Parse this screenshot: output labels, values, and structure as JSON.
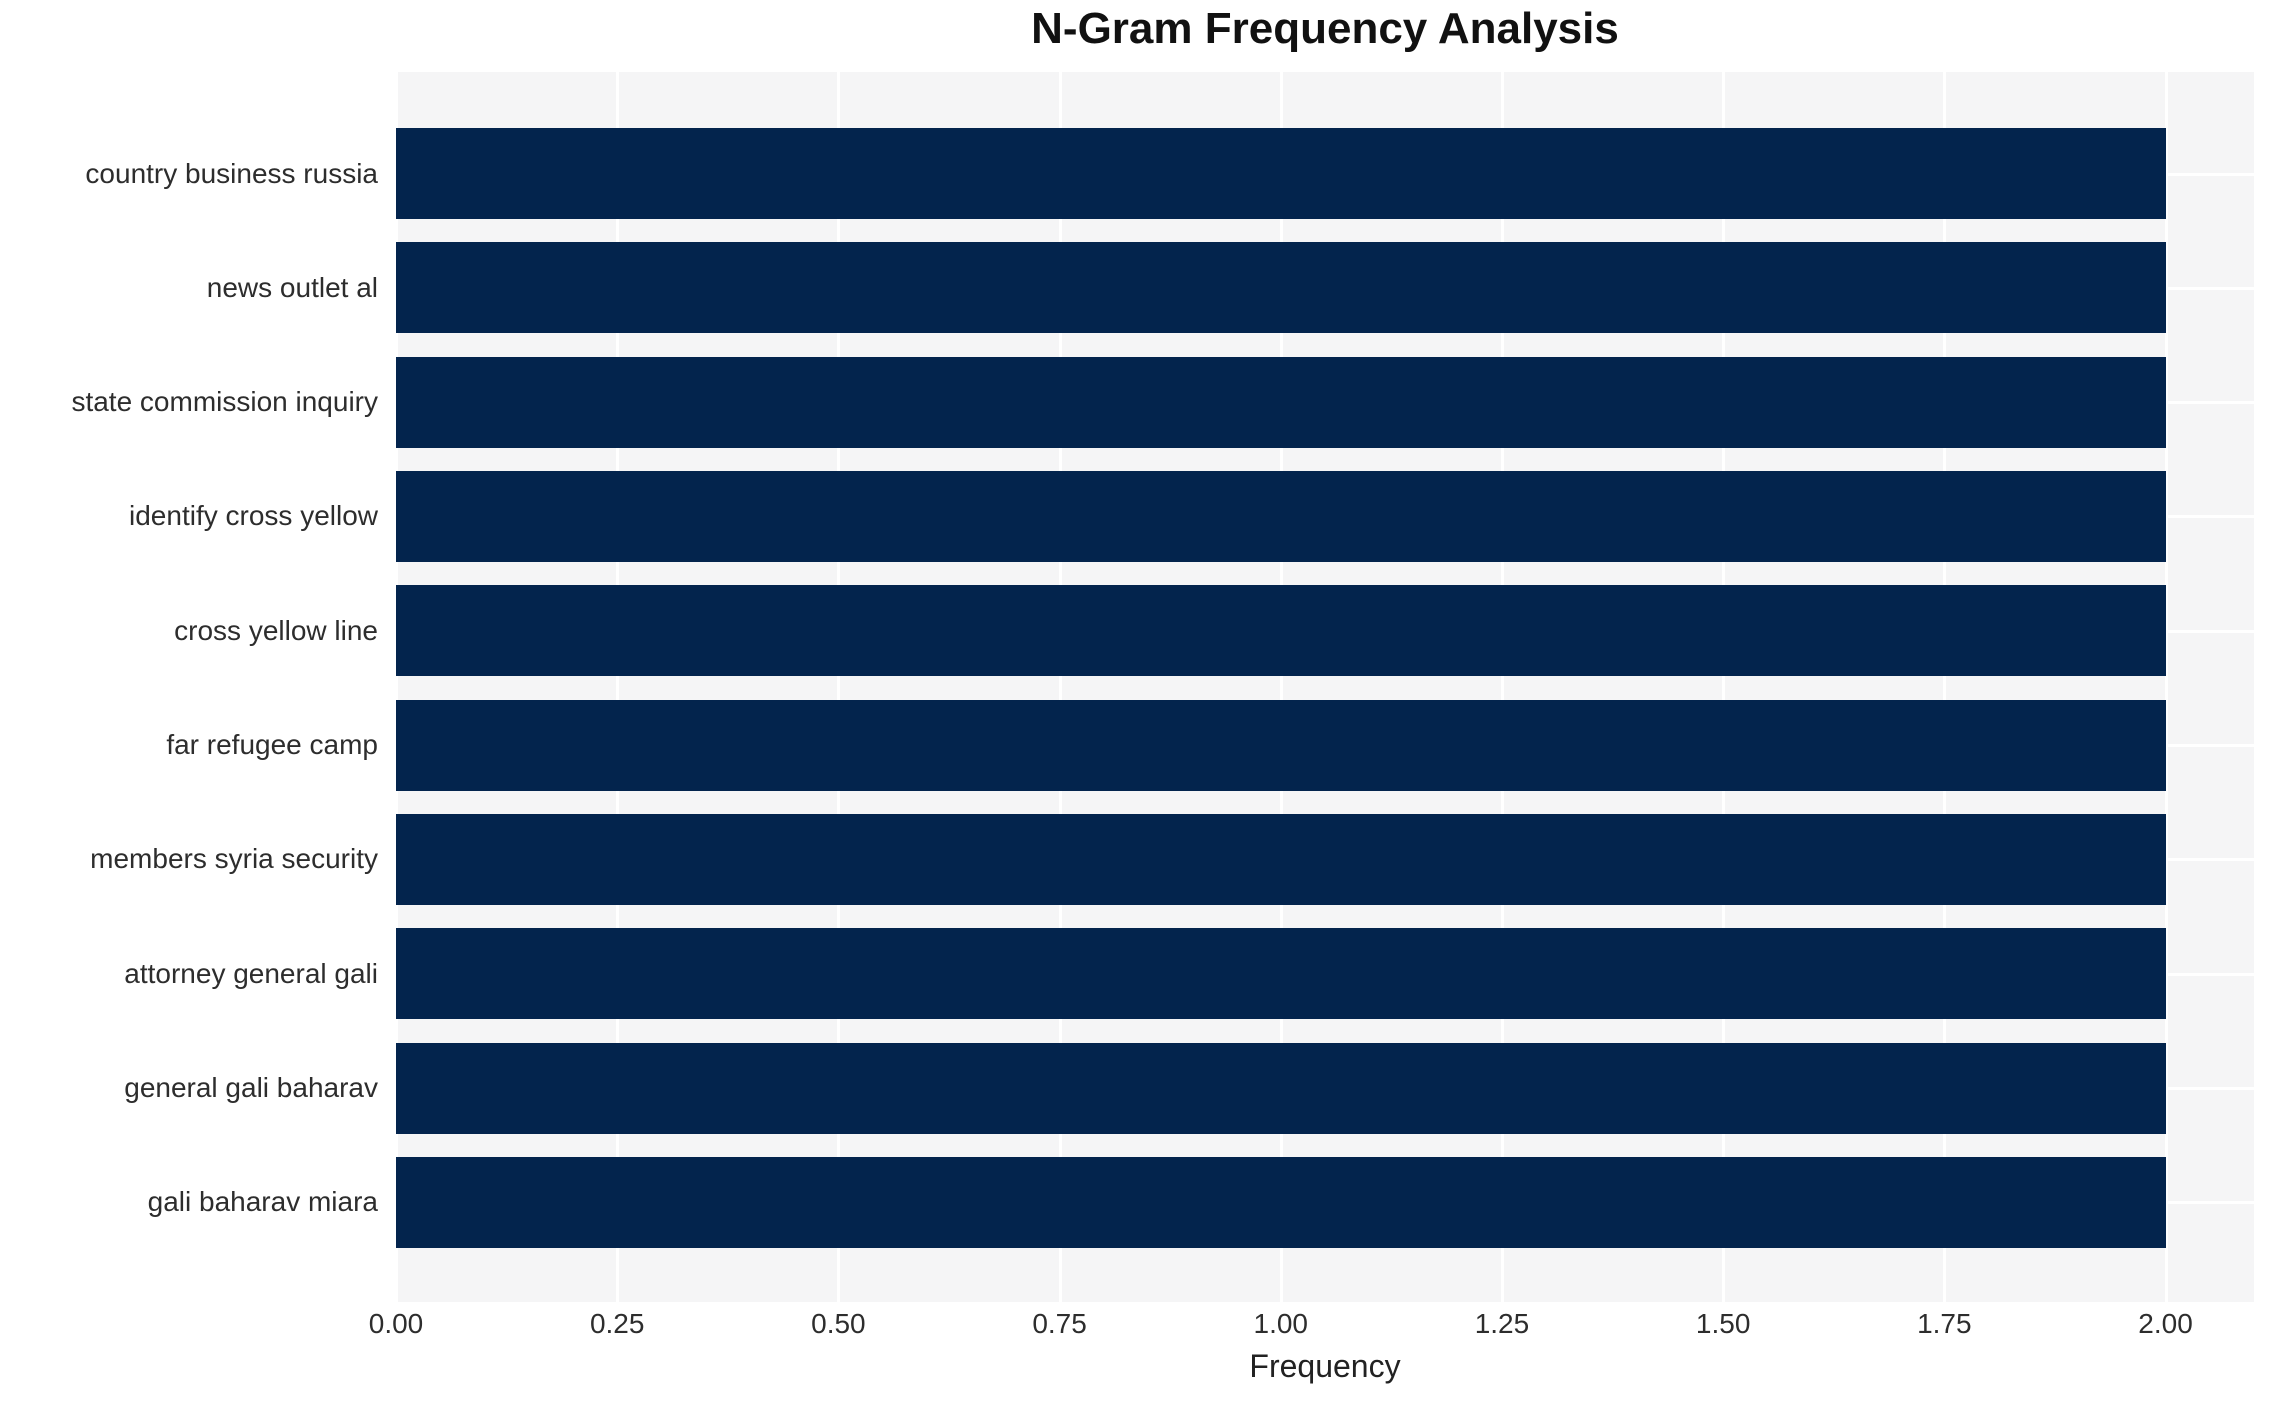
{
  "chart_data": {
    "type": "bar",
    "orientation": "horizontal",
    "title": "N-Gram Frequency Analysis",
    "xlabel": "Frequency",
    "ylabel": "",
    "categories": [
      "country business russia",
      "news outlet al",
      "state commission inquiry",
      "identify cross yellow",
      "cross yellow line",
      "far refugee camp",
      "members syria security",
      "attorney general gali",
      "general gali baharav",
      "gali baharav miara"
    ],
    "values": [
      2.0,
      2.0,
      2.0,
      2.0,
      2.0,
      2.0,
      2.0,
      2.0,
      2.0,
      2.0
    ],
    "xlim": [
      0,
      2.1
    ],
    "xticks": [
      0.0,
      0.25,
      0.5,
      0.75,
      1.0,
      1.25,
      1.5,
      1.75,
      2.0
    ],
    "xtick_labels": [
      "0.00",
      "0.25",
      "0.50",
      "0.75",
      "1.00",
      "1.25",
      "1.50",
      "1.75",
      "2.00"
    ],
    "grid": true,
    "legend": "none",
    "colors": {
      "bar": "#03244d",
      "plot_background": "#f5f5f6",
      "grid": "#ffffff",
      "figure_background": "#ffffff",
      "text": "#2d2d2d",
      "title_text": "#111111"
    }
  }
}
